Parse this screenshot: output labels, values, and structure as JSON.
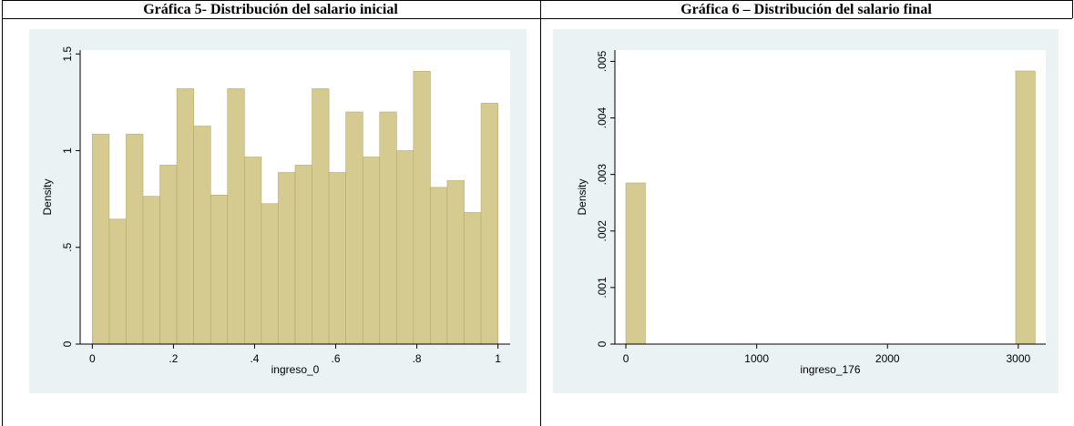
{
  "chart_data": [
    {
      "type": "histogram",
      "title": "Gráfica 5- Distribución del salario inicial",
      "x_label": "ingreso_0",
      "y_label": "Density",
      "color": "#d5cb90",
      "bins": [
        0,
        0.0417,
        0.0833,
        0.125,
        0.1667,
        0.2083,
        0.25,
        0.2917,
        0.3333,
        0.375,
        0.4167,
        0.4583,
        0.5,
        0.5417,
        0.5833,
        0.625,
        0.6667,
        0.7083,
        0.75,
        0.7917,
        0.8333,
        0.875,
        0.9167,
        0.9583,
        1
      ],
      "values": [
        1.085,
        0.646,
        1.085,
        0.764,
        0.925,
        1.32,
        1.127,
        0.77,
        1.32,
        0.967,
        0.726,
        0.887,
        0.925,
        1.32,
        0.887,
        1.2,
        0.967,
        1.2,
        1.0,
        1.41,
        0.81,
        0.845,
        0.68,
        1.245
      ],
      "xlim": [
        -0.03,
        1.03
      ],
      "ylim": [
        0,
        1.52
      ],
      "xticks": [
        0,
        {
          "value": 0.2,
          "label": ".2"
        },
        {
          "value": 0.4,
          "label": ".4"
        },
        {
          "value": 0.6,
          "label": ".6"
        },
        {
          "value": 0.8,
          "label": ".8"
        },
        1
      ],
      "yticks": [
        0,
        {
          "value": 0.5,
          "label": ".5"
        },
        1,
        1.5
      ]
    },
    {
      "type": "histogram",
      "title": "Gráfica 6 – Distribución del salario final",
      "x_label": "ingreso_176",
      "y_label": "Density",
      "color": "#d5cb90",
      "bins": [
        0,
        149,
        298,
        447,
        596,
        745,
        894,
        1043,
        1192,
        1341,
        1490,
        1639,
        1788,
        1937,
        2086,
        2235,
        2384,
        2533,
        2682,
        2831,
        2980,
        3129
      ],
      "values": [
        0.00285,
        0,
        0,
        0,
        0,
        0,
        0,
        0,
        0,
        0,
        0,
        0,
        0,
        0,
        0,
        0,
        0,
        0,
        0,
        0,
        0.00483
      ],
      "xlim": [
        -84,
        3210
      ],
      "ylim": [
        0,
        0.0052
      ],
      "xticks": [
        0,
        1000,
        2000,
        3000
      ],
      "yticks": [
        0,
        {
          "value": 0.001,
          "label": ".001"
        },
        {
          "value": 0.002,
          "label": ".002"
        },
        {
          "value": 0.003,
          "label": ".003"
        },
        {
          "value": 0.004,
          "label": ".004"
        },
        {
          "value": 0.005,
          "label": ".005"
        }
      ]
    }
  ]
}
